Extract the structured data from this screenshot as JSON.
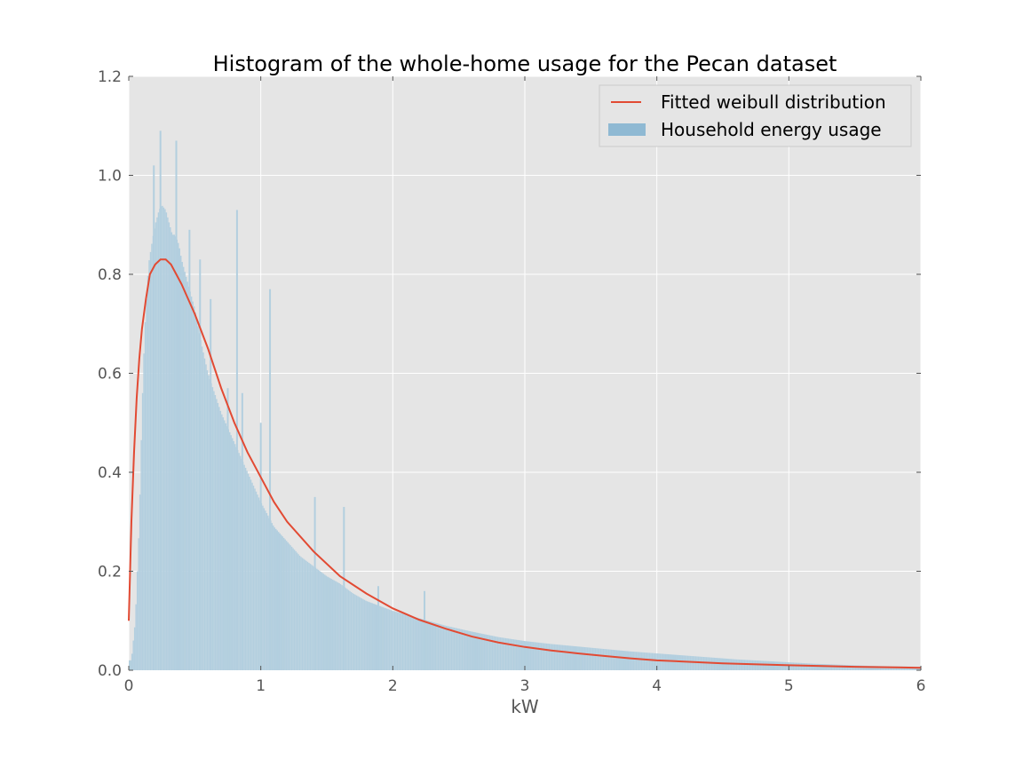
{
  "chart_data": {
    "type": "bar",
    "title": "Histogram of the whole-home usage for the Pecan dataset",
    "xlabel": "kW",
    "ylabel": "",
    "xlim": [
      0,
      6
    ],
    "ylim": [
      0,
      1.2
    ],
    "x_ticks": [
      "0",
      "1",
      "2",
      "3",
      "4",
      "5",
      "6"
    ],
    "y_ticks": [
      "0.0",
      "0.2",
      "0.4",
      "0.6",
      "0.8",
      "1.0",
      "1.2"
    ],
    "grid": true,
    "legend_position": "top-right",
    "colors": {
      "plot_background": "#e5e5e5",
      "grid": "#ffffff",
      "histogram_fill": "#b3cfdf",
      "legend_patch": "#8fb9d3",
      "fitted_line": "#e24a33"
    },
    "series": [
      {
        "name": "Household energy usage",
        "kind": "histogram",
        "x": [
          0.02,
          0.05,
          0.08,
          0.1,
          0.12,
          0.15,
          0.18,
          0.2,
          0.23,
          0.25,
          0.28,
          0.3,
          0.33,
          0.35,
          0.38,
          0.4,
          0.45,
          0.5,
          0.55,
          0.6,
          0.65,
          0.7,
          0.75,
          0.8,
          0.85,
          0.9,
          0.95,
          1.0,
          1.1,
          1.2,
          1.3,
          1.4,
          1.5,
          1.6,
          1.7,
          1.8,
          1.9,
          2.0,
          2.2,
          2.4,
          2.6,
          2.8,
          3.0,
          3.2,
          3.4,
          3.6,
          3.8,
          4.0,
          4.2,
          4.4,
          4.6,
          4.8,
          5.0,
          5.2,
          5.4,
          5.6,
          5.8,
          6.0
        ],
        "values": [
          0.02,
          0.1,
          0.3,
          0.52,
          0.68,
          0.82,
          0.87,
          0.9,
          0.93,
          0.94,
          0.93,
          0.91,
          0.88,
          0.88,
          0.86,
          0.83,
          0.78,
          0.73,
          0.66,
          0.6,
          0.56,
          0.52,
          0.49,
          0.46,
          0.43,
          0.4,
          0.37,
          0.34,
          0.29,
          0.26,
          0.23,
          0.21,
          0.19,
          0.175,
          0.155,
          0.14,
          0.13,
          0.12,
          0.105,
          0.09,
          0.078,
          0.067,
          0.059,
          0.053,
          0.048,
          0.043,
          0.038,
          0.034,
          0.03,
          0.026,
          0.022,
          0.019,
          0.016,
          0.013,
          0.011,
          0.009,
          0.008,
          0.007
        ],
        "spikes": [
          {
            "x": 0.19,
            "y": 1.02
          },
          {
            "x": 0.24,
            "y": 1.09
          },
          {
            "x": 0.36,
            "y": 1.07
          },
          {
            "x": 0.46,
            "y": 0.89
          },
          {
            "x": 0.54,
            "y": 0.83
          },
          {
            "x": 0.62,
            "y": 0.75
          },
          {
            "x": 0.75,
            "y": 0.57
          },
          {
            "x": 0.82,
            "y": 0.93
          },
          {
            "x": 0.86,
            "y": 0.56
          },
          {
            "x": 1.0,
            "y": 0.5
          },
          {
            "x": 1.07,
            "y": 0.77
          },
          {
            "x": 1.41,
            "y": 0.35
          },
          {
            "x": 1.63,
            "y": 0.33
          },
          {
            "x": 1.89,
            "y": 0.17
          },
          {
            "x": 2.24,
            "y": 0.16
          }
        ]
      },
      {
        "name": "Fitted weibull distribution",
        "kind": "line",
        "x": [
          0,
          0.01,
          0.02,
          0.04,
          0.06,
          0.08,
          0.1,
          0.13,
          0.16,
          0.2,
          0.24,
          0.28,
          0.32,
          0.36,
          0.4,
          0.45,
          0.5,
          0.6,
          0.7,
          0.8,
          0.9,
          1.0,
          1.1,
          1.2,
          1.4,
          1.6,
          1.8,
          2.0,
          2.2,
          2.4,
          2.6,
          2.8,
          3.0,
          3.2,
          3.4,
          3.6,
          3.8,
          4.0,
          4.5,
          5.0,
          5.5,
          6.0
        ],
        "values": [
          0.1,
          0.2,
          0.3,
          0.44,
          0.55,
          0.63,
          0.69,
          0.75,
          0.8,
          0.82,
          0.83,
          0.83,
          0.82,
          0.8,
          0.78,
          0.75,
          0.72,
          0.65,
          0.57,
          0.5,
          0.44,
          0.39,
          0.34,
          0.3,
          0.24,
          0.19,
          0.155,
          0.125,
          0.102,
          0.084,
          0.068,
          0.056,
          0.047,
          0.04,
          0.034,
          0.029,
          0.024,
          0.02,
          0.014,
          0.01,
          0.007,
          0.005
        ]
      }
    ]
  }
}
